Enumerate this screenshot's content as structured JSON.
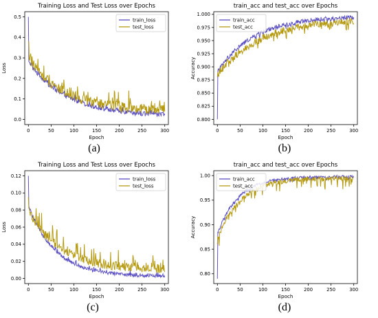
{
  "panels": [
    {
      "label": "(a)",
      "chart_data": {
        "type": "line",
        "title": "Training Loss and Test Loss over Epochs",
        "xlabel": "Epoch",
        "ylabel": "Loss",
        "xlim": [
          -8,
          308
        ],
        "ylim": [
          -0.025,
          0.525
        ],
        "xticks": [
          0,
          50,
          100,
          150,
          200,
          250,
          300
        ],
        "yticks": [
          0.0,
          0.1,
          0.2,
          0.3,
          0.4,
          0.5
        ],
        "ytick_labels": [
          "0.0",
          "0.1",
          "0.2",
          "0.3",
          "0.4",
          "0.5"
        ],
        "grid": false,
        "legend": "top-right",
        "series": [
          {
            "name": "train_loss",
            "color": "#5b4fc4",
            "shape": "decay",
            "start": 0.5,
            "early": 0.28,
            "end": 0.015,
            "tau": 85,
            "noise": 0.012,
            "spikes": 0.02
          },
          {
            "name": "test_loss",
            "color": "#b59a10",
            "shape": "decay",
            "start": 0.38,
            "early": 0.3,
            "end": 0.04,
            "tau": 80,
            "noise": 0.025,
            "spikes": 0.07
          }
        ]
      }
    },
    {
      "label": "(b)",
      "chart_data": {
        "type": "line",
        "title": "train_acc and test_acc over Epochs",
        "xlabel": "Epoch",
        "ylabel": "Accuracy",
        "xlim": [
          -8,
          308
        ],
        "ylim": [
          0.79,
          1.005
        ],
        "xticks": [
          0,
          50,
          100,
          150,
          200,
          250,
          300
        ],
        "yticks": [
          0.8,
          0.825,
          0.85,
          0.875,
          0.9,
          0.925,
          0.95,
          0.975,
          1.0
        ],
        "ytick_labels": [
          "0.800",
          "0.825",
          "0.850",
          "0.875",
          "0.900",
          "0.925",
          "0.950",
          "0.975",
          "1.000"
        ],
        "grid": false,
        "legend": "top-left",
        "series": [
          {
            "name": "train_acc",
            "color": "#5b4fc4",
            "shape": "rise",
            "start": 0.8,
            "early": 0.89,
            "end": 0.997,
            "tau": 80,
            "noise": 0.004,
            "spikes": 0.006
          },
          {
            "name": "test_acc",
            "color": "#b59a10",
            "shape": "rise",
            "start": 0.88,
            "early": 0.885,
            "end": 0.992,
            "tau": 95,
            "noise": 0.007,
            "spikes": 0.015
          }
        ]
      }
    },
    {
      "label": "(c)",
      "chart_data": {
        "type": "line",
        "title": "Training Loss and Test Loss over Epochs",
        "xlabel": "Epoch",
        "ylabel": "Loss",
        "xlim": [
          -8,
          308
        ],
        "ylim": [
          -0.006,
          0.126
        ],
        "xticks": [
          0,
          50,
          100,
          150,
          200,
          250,
          300
        ],
        "yticks": [
          0.0,
          0.02,
          0.04,
          0.06,
          0.08,
          0.1,
          0.12
        ],
        "ytick_labels": [
          "0.00",
          "0.02",
          "0.04",
          "0.06",
          "0.08",
          "0.10",
          "0.12"
        ],
        "grid": false,
        "legend": "top-right",
        "series": [
          {
            "name": "train_loss",
            "color": "#5b4fc4",
            "shape": "decay",
            "start": 0.12,
            "early": 0.085,
            "end": 0.002,
            "tau": 60,
            "noise": 0.002,
            "spikes": 0.004
          },
          {
            "name": "test_loss",
            "color": "#b59a10",
            "shape": "decay",
            "start": 0.095,
            "early": 0.08,
            "end": 0.01,
            "tau": 70,
            "noise": 0.005,
            "spikes": 0.018
          }
        ]
      }
    },
    {
      "label": "(d)",
      "chart_data": {
        "type": "line",
        "title": "train_acc and test_acc over Epochs",
        "xlabel": "Epoch",
        "ylabel": "Accuracy",
        "xlim": [
          -8,
          308
        ],
        "ylim": [
          0.78,
          1.01
        ],
        "xticks": [
          0,
          50,
          100,
          150,
          200,
          250,
          300
        ],
        "yticks": [
          0.8,
          0.85,
          0.9,
          0.95,
          1.0
        ],
        "ytick_labels": [
          "0.80",
          "0.85",
          "0.90",
          "0.95",
          "1.00"
        ],
        "grid": false,
        "legend": "top-left",
        "series": [
          {
            "name": "train_acc",
            "color": "#5b4fc4",
            "shape": "rise",
            "start": 0.79,
            "early": 0.88,
            "end": 0.998,
            "tau": 45,
            "noise": 0.003,
            "spikes": 0.006
          },
          {
            "name": "test_acc",
            "color": "#b59a10",
            "shape": "rise",
            "start": 0.86,
            "early": 0.87,
            "end": 0.995,
            "tau": 50,
            "noise": 0.005,
            "spikes": 0.02
          }
        ]
      }
    }
  ]
}
